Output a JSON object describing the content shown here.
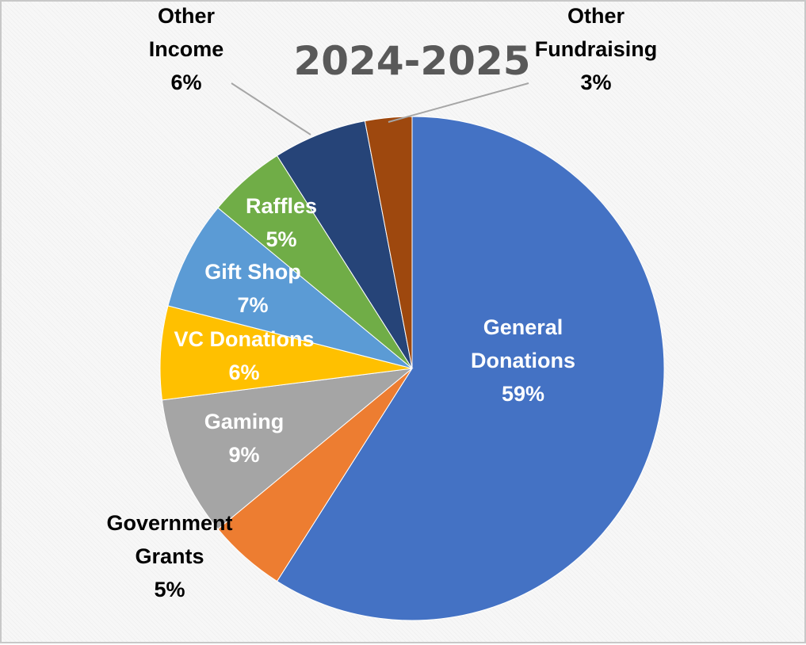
{
  "chart_data": {
    "type": "pie",
    "title": "2024-2025",
    "start_angle_deg": 0,
    "direction": "clockwise",
    "slices": [
      {
        "label": [
          "General",
          "Donations"
        ],
        "value": 59,
        "value_label": "59%",
        "color": "#4472C4",
        "label_color": "#ffffff"
      },
      {
        "label": [
          "Government",
          "Grants"
        ],
        "value": 5,
        "value_label": "5%",
        "color": "#ED7D31",
        "label_color": "#000000"
      },
      {
        "label": [
          "Gaming"
        ],
        "value": 9,
        "value_label": "9%",
        "color": "#A5A5A5",
        "label_color": "#ffffff"
      },
      {
        "label": [
          "VC Donations"
        ],
        "value": 6,
        "value_label": "6%",
        "color": "#FFC000",
        "label_color": "#ffffff"
      },
      {
        "label": [
          "Gift Shop"
        ],
        "value": 7,
        "value_label": "7%",
        "color": "#5B9BD5",
        "label_color": "#ffffff"
      },
      {
        "label": [
          "Raffles"
        ],
        "value": 5,
        "value_label": "5%",
        "color": "#70AD47",
        "label_color": "#ffffff"
      },
      {
        "label": [
          "Other",
          "Income"
        ],
        "value": 6,
        "value_label": "6%",
        "color": "#264478",
        "label_color": "#000000"
      },
      {
        "label": [
          "Other",
          "Fundraising"
        ],
        "value": 3,
        "value_label": "3%",
        "color": "#9E480E",
        "label_color": "#000000"
      }
    ],
    "legend": "none"
  }
}
